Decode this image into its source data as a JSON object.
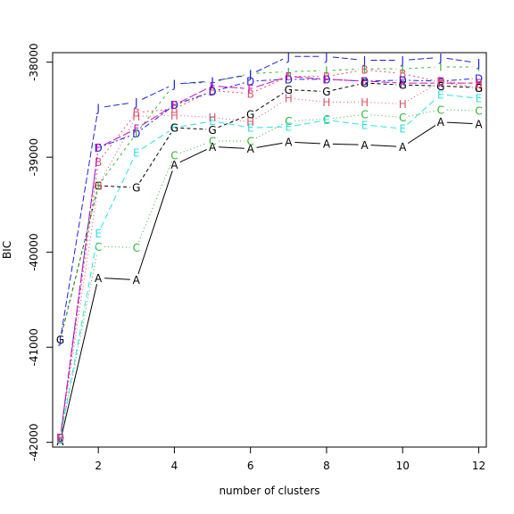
{
  "chart_data": {
    "type": "line",
    "title": "",
    "xlabel": "number of clusters",
    "ylabel": "BIC",
    "x": [
      1,
      2,
      3,
      4,
      5,
      6,
      7,
      8,
      9,
      10,
      11,
      12
    ],
    "xlim": [
      0.8,
      12.2
    ],
    "ylim": [
      -42050,
      -37900
    ],
    "x_ticks": [
      2,
      4,
      6,
      8,
      10,
      12
    ],
    "y_ticks": [
      -42000,
      -41000,
      -40000,
      -39000,
      -38000
    ],
    "x_tick_labels": [
      "2",
      "4",
      "6",
      "8",
      "10",
      "12"
    ],
    "y_tick_labels": [
      "-42000",
      "-41000",
      "-40000",
      "-39000",
      "-38000"
    ],
    "grid": false,
    "legend": "none",
    "series": [
      {
        "name": "A",
        "color": "#000000",
        "dash": "solid",
        "values": [
          -41990,
          -40270,
          -40290,
          -39080,
          -38890,
          -38910,
          -38840,
          -38860,
          -38870,
          -38890,
          -38630,
          -38650
        ]
      },
      {
        "name": "B",
        "color": "#DF536B",
        "dash": "2,3",
        "values": [
          -41950,
          -39050,
          -38530,
          -38490,
          -38300,
          -38330,
          -38150,
          -38150,
          -38080,
          -38120,
          -38210,
          -38270
        ]
      },
      {
        "name": "C",
        "color": "#2FB52F",
        "dash": "1,3",
        "values": [
          -41950,
          -39940,
          -39950,
          -38980,
          -38830,
          -38830,
          -38620,
          -38600,
          -38550,
          -38580,
          -38500,
          -38510
        ]
      },
      {
        "name": "D",
        "color": "#2020DF",
        "dash": "2,3,6,3",
        "values": [
          -41950,
          -38900,
          -38750,
          -38450,
          -38310,
          -38200,
          -38180,
          -38180,
          -38200,
          -38190,
          -38200,
          -38170
        ]
      },
      {
        "name": "E",
        "color": "#28E2E5",
        "dash": "7,4",
        "values": [
          -41960,
          -39800,
          -38950,
          -38690,
          -38620,
          -38690,
          -38680,
          -38610,
          -38660,
          -38700,
          -38340,
          -38380
        ]
      },
      {
        "name": "F",
        "color": "#CD0BBC",
        "dash": "9,3",
        "values": [
          -41950,
          -38900,
          -38700,
          -38450,
          -38250,
          -38280,
          -38150,
          -38180,
          -38200,
          -38220,
          -38220,
          -38220
        ]
      },
      {
        "name": "G",
        "color": "#000000",
        "dash": "4,3",
        "values": [
          -40920,
          -39300,
          -39320,
          -38690,
          -38710,
          -38550,
          -38290,
          -38310,
          -38220,
          -38240,
          -38250,
          -38270
        ]
      },
      {
        "name": "H",
        "color": "#DF536B",
        "dash": "1,3",
        "values": [
          -41950,
          -39300,
          -38570,
          -38560,
          -38580,
          -38630,
          -38380,
          -38420,
          -38420,
          -38440,
          -38200,
          -38230
        ]
      },
      {
        "name": "I",
        "color": "#2FB52F",
        "dash": "3,4",
        "values": [
          -40920,
          -39300,
          -38750,
          -38230,
          -38210,
          -38120,
          -38100,
          -38090,
          -38070,
          -38070,
          -38050,
          -38050
        ]
      },
      {
        "name": "J",
        "color": "#2020DF",
        "dash": "7,3",
        "values": [
          -40920,
          -38480,
          -38420,
          -38230,
          -38200,
          -38130,
          -37940,
          -37940,
          -37980,
          -37980,
          -37950,
          -38010
        ]
      }
    ]
  }
}
